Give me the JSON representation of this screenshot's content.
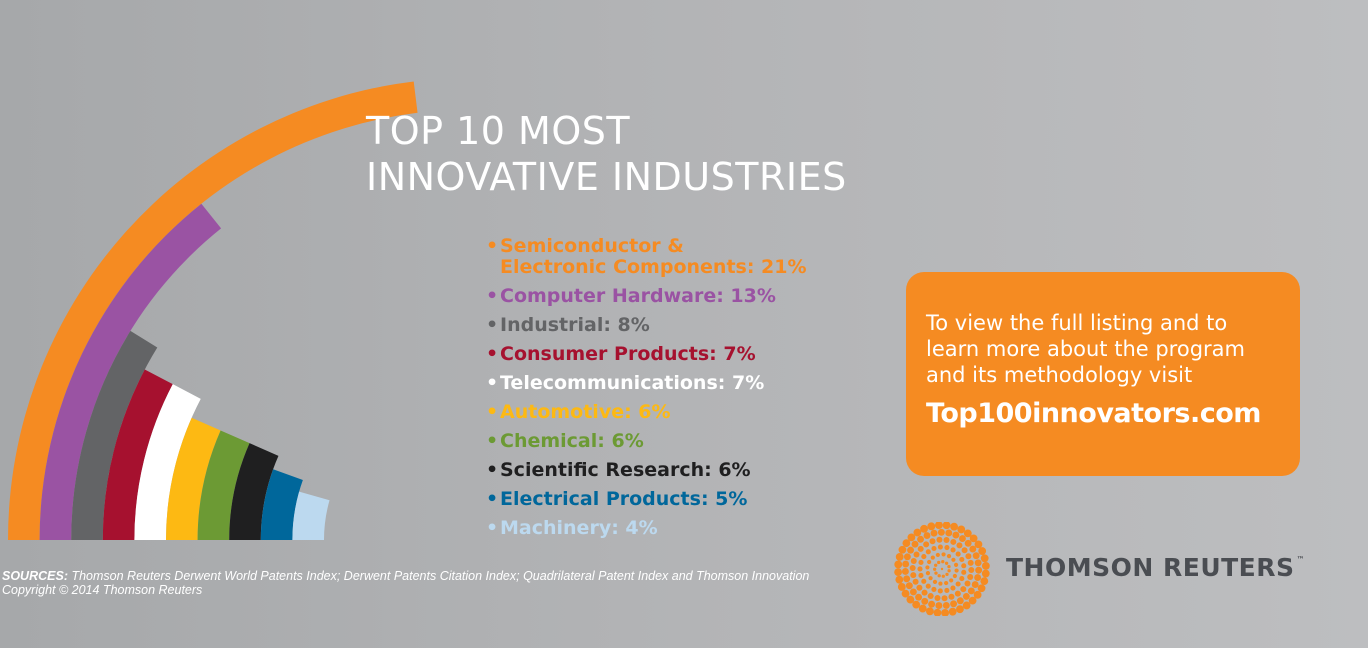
{
  "title": {
    "line1": "TOP 10 MOST",
    "line2": "INNOVATIVE INDUSTRIES"
  },
  "chart_data": {
    "type": "bar",
    "title": "TOP 10 MOST INNOVATIVE INDUSTRIES",
    "unit": "%",
    "categories": [
      "Semiconductor & Electronic Components",
      "Computer Hardware",
      "Industrial",
      "Consumer Products",
      "Telecommunications",
      "Automotive",
      "Chemical",
      "Scientific Research",
      "Electrical Products",
      "Machinery"
    ],
    "values": [
      21,
      13,
      8,
      7,
      7,
      6,
      6,
      6,
      5,
      4
    ],
    "colors": [
      "#f58b22",
      "#9a53a3",
      "#636466",
      "#a6112f",
      "#ffffff",
      "#fdb913",
      "#6c9a34",
      "#1f1f20",
      "#00679b",
      "#bcd9ef"
    ],
    "legend_items": [
      {
        "label": "Semiconductor &\nElectronic Components: 21%",
        "color": "#f58b22"
      },
      {
        "label": "Computer Hardware: 13%",
        "color": "#9a53a3"
      },
      {
        "label": "Industrial: 8%",
        "color": "#636466"
      },
      {
        "label": "Consumer Products: 7%",
        "color": "#a6112f"
      },
      {
        "label": "Telecommunications: 7%",
        "color": "#ffffff"
      },
      {
        "label": "Automotive: 6%",
        "color": "#fdb913"
      },
      {
        "label": "Chemical: 6%",
        "color": "#6c9a34"
      },
      {
        "label": "Scientific Research: 6%",
        "color": "#1f1f20"
      },
      {
        "label": "Electrical Products: 5%",
        "color": "#00679b"
      },
      {
        "label": "Machinery: 4%",
        "color": "#bcd9ef"
      }
    ],
    "legend_position": "right",
    "grid": false
  },
  "bullet": "•",
  "cta": {
    "message": "To view the full listing and to\nlearn more about the program\nand its methodology visit",
    "url": "Top100innovators.com"
  },
  "brand": {
    "name": "THOMSON REUTERS",
    "tm": "™",
    "logo_color": "#f58b22"
  },
  "sources": {
    "label": "SOURCES:",
    "text": "Thomson Reuters Derwent World Patents Index; Derwent Patents Citation Index; Quadrilateral Patent Index and Thomson Innovation",
    "copyright": "Copyright © 2014 Thomson Reuters"
  }
}
